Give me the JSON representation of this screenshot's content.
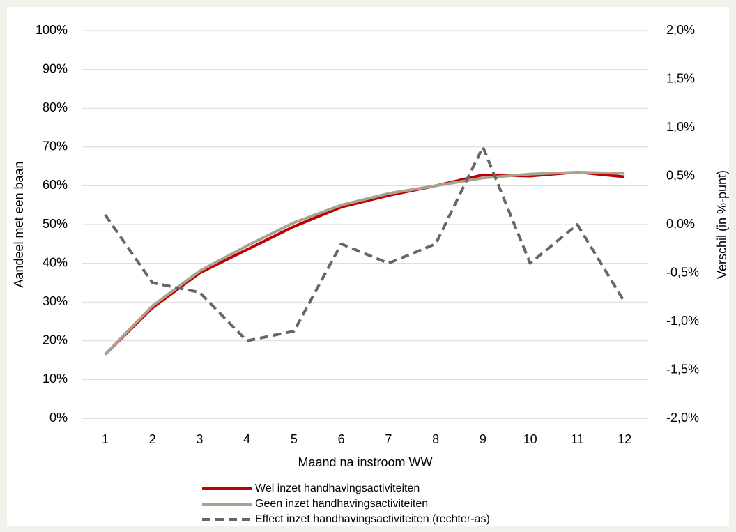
{
  "chart_data": {
    "type": "line",
    "x_label": "Maand na instroom WW",
    "y_label": "Aandeel met een baan",
    "y2_label": "Verschil (in %-punt)",
    "categories": [
      "1",
      "2",
      "3",
      "4",
      "5",
      "6",
      "7",
      "8",
      "9",
      "10",
      "11",
      "12"
    ],
    "ylim": [
      0,
      100
    ],
    "yticks": [
      {
        "value": 0,
        "label": "0%"
      },
      {
        "value": 10,
        "label": "10%"
      },
      {
        "value": 20,
        "label": "20%"
      },
      {
        "value": 30,
        "label": "30%"
      },
      {
        "value": 40,
        "label": "40%"
      },
      {
        "value": 50,
        "label": "50%"
      },
      {
        "value": 60,
        "label": "60%"
      },
      {
        "value": 70,
        "label": "70%"
      },
      {
        "value": 80,
        "label": "80%"
      },
      {
        "value": 90,
        "label": "90%"
      },
      {
        "value": 100,
        "label": "100%"
      }
    ],
    "y2lim": [
      -2.0,
      2.0
    ],
    "y2ticks": [
      {
        "value": -2.0,
        "label": "-2,0%"
      },
      {
        "value": -1.5,
        "label": "-1,5%"
      },
      {
        "value": -1.0,
        "label": "-1,0%"
      },
      {
        "value": -0.5,
        "label": "-0,5%"
      },
      {
        "value": 0,
        "label": "0,0%"
      },
      {
        "value": 0.5,
        "label": "0,5%"
      },
      {
        "value": 1.0,
        "label": "1,0%"
      },
      {
        "value": 1.5,
        "label": "1,5%"
      },
      {
        "value": 2.0,
        "label": "2,0%"
      }
    ],
    "grid": true,
    "legend": "bottom",
    "series": [
      {
        "name": "Wel inzet handhavingsactiviteiten",
        "color": "#c00000",
        "width": 4,
        "dash": false,
        "values": [
          16.5,
          28.5,
          37.5,
          43.5,
          49.5,
          54.5,
          57.5,
          60,
          62.8,
          62.5,
          63.5,
          62.3
        ]
      },
      {
        "name": "Geen inzet handhavingsactiviteiten",
        "color": "#a8a291",
        "width": 4,
        "dash": false,
        "values": [
          16.5,
          29,
          38,
          44.5,
          50.5,
          55,
          58,
          60,
          62,
          63,
          63.5,
          63.2
        ]
      },
      {
        "name": "Effect inzet handhavingsactiviteiten (rechter-as)",
        "color": "#666666",
        "width": 4,
        "dash": true,
        "axis": "y2",
        "values": [
          0.1,
          -0.6,
          -0.7,
          -1.2,
          -1.1,
          -0.2,
          -0.4,
          -0.2,
          0.8,
          -0.4,
          0.0,
          -0.8
        ]
      }
    ]
  }
}
